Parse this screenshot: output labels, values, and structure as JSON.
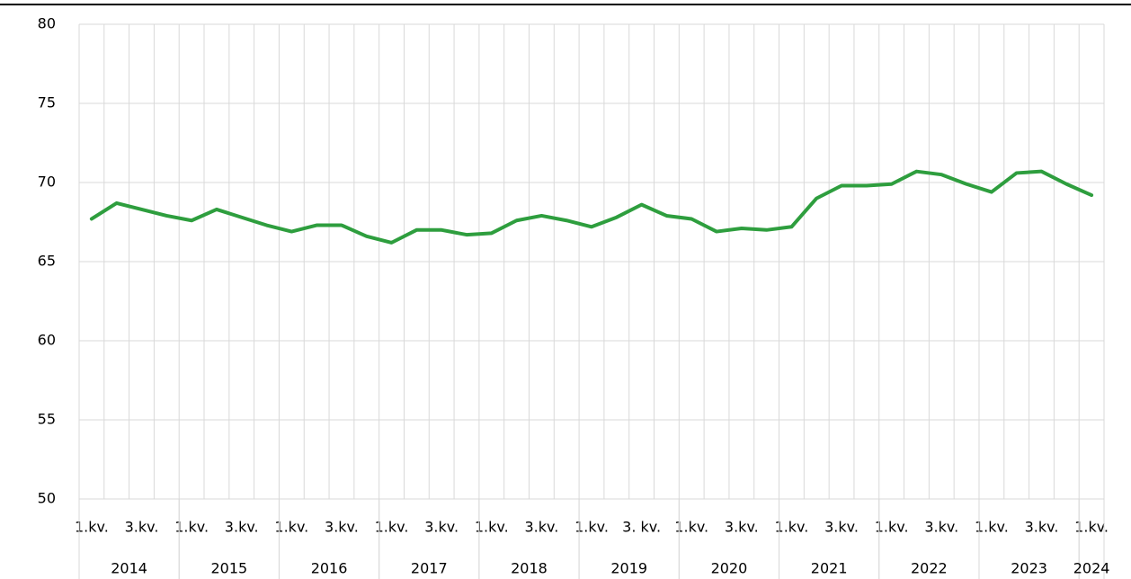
{
  "chart_data": {
    "type": "line",
    "categories": [
      "1.kv.",
      null,
      "3.kv.",
      null,
      "1.kv.",
      null,
      "3.kv.",
      null,
      "1.kv.",
      null,
      "3.kv.",
      null,
      "1.kv.",
      null,
      "3.kv.",
      null,
      "1.kv.",
      null,
      "3.kv.",
      null,
      "1.kv.",
      null,
      "3. kv.",
      null,
      "1.kv.",
      null,
      "3.kv.",
      null,
      "1.kv.",
      null,
      "3.kv.",
      null,
      "1.kv.",
      null,
      "3.kv.",
      null,
      "1.kv.",
      null,
      "3.kv.",
      null,
      "1.kv."
    ],
    "years": [
      "2014",
      "2015",
      "2016",
      "2017",
      "2018",
      "2019",
      "2020",
      "2021",
      "2022",
      "2023",
      "2024"
    ],
    "series": [
      {
        "color": "#2e9e3e",
        "values": [
          67.7,
          68.7,
          68.3,
          67.9,
          67.6,
          68.3,
          67.8,
          67.3,
          66.9,
          67.3,
          67.3,
          66.6,
          66.2,
          67.0,
          67.0,
          66.7,
          66.8,
          67.6,
          67.9,
          67.6,
          67.2,
          67.8,
          68.6,
          67.9,
          67.7,
          66.9,
          67.1,
          67.0,
          67.2,
          69.0,
          69.8,
          69.8,
          69.9,
          70.7,
          70.5,
          69.9,
          69.4,
          70.6,
          70.7,
          69.9,
          69.2
        ]
      }
    ],
    "ylim": [
      50,
      80
    ],
    "yticks": [
      50,
      55,
      60,
      65,
      70,
      75,
      80
    ],
    "grid": true
  }
}
